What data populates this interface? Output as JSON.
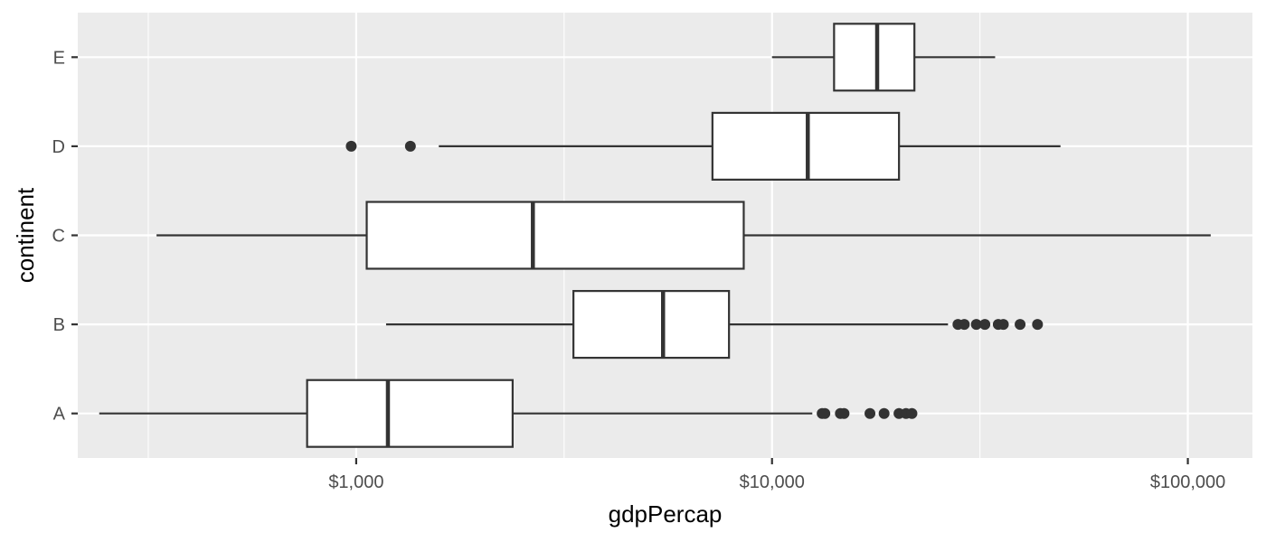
{
  "chart_data": {
    "type": "boxplot",
    "orientation": "horizontal",
    "xlabel": "gdpPercap",
    "ylabel": "continent",
    "x_scale": "log10",
    "xlim": [
      214,
      143000
    ],
    "x_ticks": [
      {
        "value": 1000,
        "label": "$1,000"
      },
      {
        "value": 10000,
        "label": "$10,000"
      },
      {
        "value": 100000,
        "label": "$100,000"
      }
    ],
    "x_minor_ticks": [
      316.2,
      3162.3,
      31622.8
    ],
    "categories": [
      "A",
      "B",
      "C",
      "D",
      "E"
    ],
    "boxes": [
      {
        "category": "A",
        "whisker_low": 241,
        "q1": 762,
        "median": 1192,
        "q3": 2378,
        "whisker_high": 12500,
        "outliers": [
          13200,
          13400,
          14600,
          14900,
          17200,
          18600,
          20200,
          21000,
          21700
        ]
      },
      {
        "category": "B",
        "whisker_low": 1180,
        "q1": 3330,
        "median": 5470,
        "q3": 7880,
        "whisker_high": 26500,
        "outliers": [
          28000,
          29000,
          31000,
          32500,
          35000,
          36000,
          39500,
          43500
        ]
      },
      {
        "category": "C",
        "whisker_low": 331,
        "q1": 1060,
        "median": 2660,
        "q3": 8550,
        "whisker_high": 113500,
        "outliers": []
      },
      {
        "category": "D",
        "whisker_low": 1580,
        "q1": 7190,
        "median": 12190,
        "q3": 20200,
        "whisker_high": 49400,
        "outliers": [
          973,
          1350
        ]
      },
      {
        "category": "E",
        "whisker_low": 10000,
        "q1": 14100,
        "median": 17900,
        "q3": 22000,
        "whisker_high": 34400,
        "outliers": []
      }
    ],
    "grid": true,
    "colors": {
      "panel_background": "#ebebeb",
      "grid": "#ffffff",
      "box_fill": "#ffffff",
      "box_stroke": "#333333",
      "tick_text": "#4d4d4d",
      "title_text": "#000000"
    }
  }
}
